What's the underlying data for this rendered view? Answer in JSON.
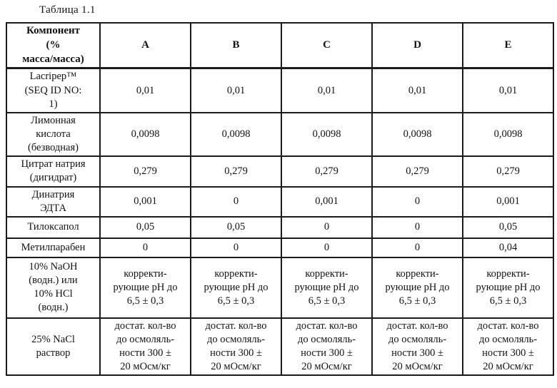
{
  "title": "Таблица 1.1",
  "table": {
    "header": [
      "Компонент\n(%\nмасса/масса)",
      "A",
      "B",
      "C",
      "D",
      "E"
    ],
    "rows": [
      {
        "label": "Lacripep™\n(SEQ ID NO:\n1)",
        "values": [
          "0,01",
          "0,01",
          "0,01",
          "0,01",
          "0,01"
        ]
      },
      {
        "label": "Лимонная\nкислота\n(безводная)",
        "values": [
          "0,0098",
          "0,0098",
          "0,0098",
          "0,0098",
          "0,0098"
        ]
      },
      {
        "label": "Цитрат натрия\n(дигидрат)",
        "values": [
          "0,279",
          "0,279",
          "0,279",
          "0,279",
          "0,279"
        ]
      },
      {
        "label": "Динатрия\nЭДТА",
        "values": [
          "0,001",
          "0",
          "0,001",
          "0",
          "0,001"
        ]
      },
      {
        "label": "Тилоксапол",
        "values": [
          "0,05",
          "0,05",
          "0",
          "0",
          "0,05"
        ]
      },
      {
        "label": "Метилпарабен",
        "values": [
          "0",
          "0",
          "0",
          "0",
          "0,04"
        ]
      },
      {
        "label": "10% NaOH\n(водн.) или\n10% HCl\n(водн.)",
        "values": [
          "корректи-\nрующие pH до\n6,5 ± 0,3",
          "корректи-\nрующие pH до\n6,5 ± 0,3",
          "корректи-\nрующие pH до\n6,5 ± 0,3",
          "корректи-\nрующие pH до\n6,5 ± 0,3",
          "корректи-\nрующие pH до\n6,5 ± 0,3"
        ]
      },
      {
        "label": "25% NaCl\nраствор",
        "values": [
          "достат. кол-во\nдо осмоляль-\nности 300 ±\n20 мОсм/кг",
          "достат. кол-во\nдо осмоляль-\nности 300 ±\n20 мОсм/кг",
          "достат. кол-во\nдо осмоляль-\nности 300 ±\n20 мОсм/кг",
          "достат. кол-во\nдо осмоляль-\nности 300 ±\n20 мОсм/кг",
          "достат. кол-во\nдо осмоляль-\nности 300 ±\n20 мОсм/кг"
        ]
      }
    ]
  }
}
